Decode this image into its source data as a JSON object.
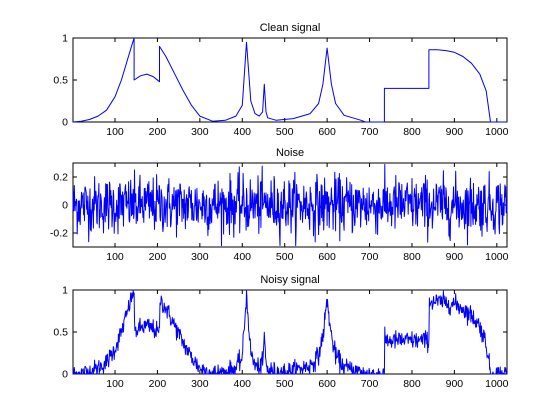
{
  "chart_data": [
    {
      "type": "line",
      "title": "Clean signal",
      "xlim": [
        1,
        1024
      ],
      "ylim": [
        0,
        1
      ],
      "xticks": [
        100,
        200,
        300,
        400,
        500,
        600,
        700,
        800,
        900,
        1000
      ],
      "xtick_labels": [
        "100",
        "200",
        "300",
        "400",
        "500",
        "600",
        "700",
        "800",
        "900",
        "1000"
      ],
      "yticks": [
        0,
        0.5,
        1
      ],
      "ytick_labels": [
        "0",
        "0.5",
        "1"
      ],
      "grid": false,
      "color": "#0000ff",
      "series": [
        {
          "x": [
            1,
            20,
            40,
            60,
            80,
            100,
            115,
            130,
            140,
            145,
            145,
            160,
            175,
            190,
            195,
            205,
            205,
            220,
            240,
            260,
            280,
            300,
            330,
            360,
            385,
            400,
            410,
            420,
            430,
            440,
            448,
            452,
            456,
            460,
            480,
            520,
            560,
            580,
            590,
            600,
            610,
            620,
            640,
            680,
            690,
            700,
            735,
            735,
            840,
            840,
            860,
            880,
            900,
            920,
            940,
            960,
            975,
            985,
            1024
          ],
          "y": [
            0,
            0.01,
            0.03,
            0.07,
            0.14,
            0.3,
            0.5,
            0.75,
            0.92,
            1.0,
            0.5,
            0.55,
            0.57,
            0.54,
            0.52,
            0.48,
            0.9,
            0.78,
            0.58,
            0.38,
            0.2,
            0.07,
            0.01,
            0.02,
            0.07,
            0.2,
            0.95,
            0.25,
            0.1,
            0.07,
            0.12,
            0.45,
            0.12,
            0.05,
            0.02,
            0.04,
            0.1,
            0.22,
            0.45,
            0.88,
            0.45,
            0.22,
            0.08,
            0.02,
            0.0,
            0.0,
            0.0,
            0.4,
            0.4,
            0.86,
            0.86,
            0.85,
            0.83,
            0.78,
            0.7,
            0.57,
            0.37,
            0.0,
            0.0
          ]
        }
      ]
    },
    {
      "type": "line",
      "title": "Noise",
      "xlim": [
        1,
        1024
      ],
      "ylim": [
        -0.3,
        0.3
      ],
      "xticks": [
        100,
        200,
        300,
        400,
        500,
        600,
        700,
        800,
        900,
        1000
      ],
      "xtick_labels": [
        "100",
        "200",
        "300",
        "400",
        "500",
        "600",
        "700",
        "800",
        "900",
        "1000"
      ],
      "yticks": [
        -0.2,
        0,
        0.2
      ],
      "ytick_labels": [
        "-0.2",
        "0",
        "0.2"
      ],
      "grid": false,
      "color": "#0000ff",
      "series": [
        {
          "x_range": [
            1,
            1024
          ],
          "noise_std": 0.1
        }
      ]
    },
    {
      "type": "line",
      "title": "Noisy signal",
      "xlim": [
        1,
        1024
      ],
      "ylim": [
        0,
        1
      ],
      "xticks": [
        100,
        200,
        300,
        400,
        500,
        600,
        700,
        800,
        900,
        1000
      ],
      "xtick_labels": [
        "100",
        "200",
        "300",
        "400",
        "500",
        "600",
        "700",
        "800",
        "900",
        "1000"
      ],
      "yticks": [
        0,
        0.5,
        1
      ],
      "ytick_labels": [
        "0",
        "0.5",
        "1"
      ],
      "grid": false,
      "color": "#0000ff",
      "series": [
        {
          "x_range": [
            1,
            1024
          ],
          "definition": "clean signal plus noise"
        }
      ]
    }
  ]
}
